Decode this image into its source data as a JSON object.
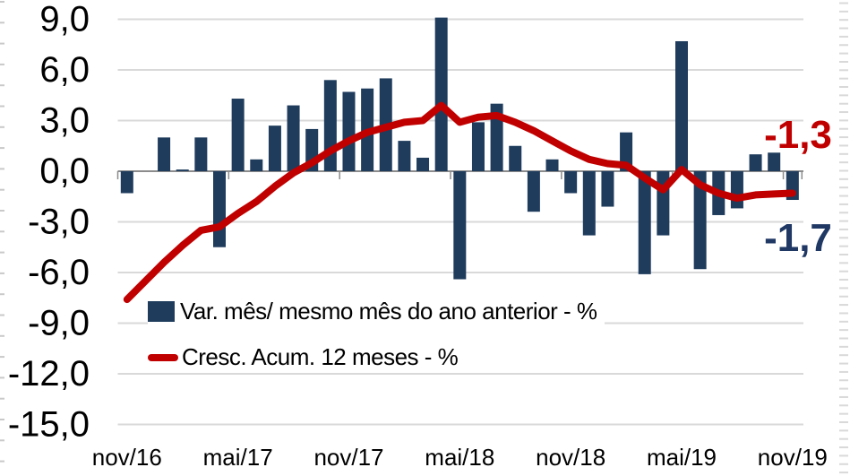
{
  "chart_data": {
    "type": "combo",
    "title": "",
    "categories": [
      "nov/16",
      "dez/16",
      "jan/17",
      "fev/17",
      "mar/17",
      "abr/17",
      "mai/17",
      "jun/17",
      "jul/17",
      "ago/17",
      "set/17",
      "out/17",
      "nov/17",
      "dez/17",
      "jan/18",
      "fev/18",
      "mar/18",
      "abr/18",
      "mai/18",
      "jun/18",
      "jul/18",
      "ago/18",
      "set/18",
      "out/18",
      "nov/18",
      "dez/18",
      "jan/19",
      "fev/19",
      "mar/19",
      "abr/19",
      "mai/19",
      "jun/19",
      "jul/19",
      "ago/19",
      "set/19",
      "out/19",
      "nov/19"
    ],
    "series": [
      {
        "name": "Var. mês/ mesmo mês do ano anterior - %",
        "type": "bar",
        "values": [
          -1.3,
          0,
          2.0,
          0.1,
          2.0,
          -4.5,
          4.3,
          0.7,
          2.7,
          3.9,
          2.5,
          5.4,
          4.7,
          4.9,
          5.5,
          1.8,
          0.8,
          9.1,
          -6.4,
          2.9,
          4.0,
          1.5,
          -2.4,
          0.7,
          -1.3,
          -3.8,
          -2.1,
          2.3,
          -6.1,
          -3.8,
          7.7,
          -5.8,
          -2.6,
          -2.2,
          1.0,
          1.1,
          -1.7
        ]
      },
      {
        "name": "Cresc. Acum. 12 meses - %",
        "type": "line",
        "values": [
          -7.6,
          -6.5,
          -5.4,
          -4.4,
          -3.5,
          -3.3,
          -2.5,
          -1.8,
          -0.9,
          -0.1,
          0.5,
          1.2,
          1.8,
          2.3,
          2.6,
          2.9,
          3.0,
          3.9,
          2.9,
          3.2,
          3.3,
          2.9,
          2.4,
          1.8,
          1.2,
          0.7,
          0.45,
          0.35,
          -0.4,
          -1.1,
          0.1,
          -0.8,
          -1.3,
          -1.6,
          -1.4,
          -1.35,
          -1.3
        ]
      }
    ],
    "y_ticks": [
      {
        "label": "9,0",
        "value": 9
      },
      {
        "label": "6,0",
        "value": 6
      },
      {
        "label": "3,0",
        "value": 3
      },
      {
        "label": "0,0",
        "value": 0
      },
      {
        "label": "-3,0",
        "value": -3
      },
      {
        "label": "-6,0",
        "value": -6
      },
      {
        "label": "-9,0",
        "value": -9
      },
      {
        "label": "-12,0",
        "value": -12
      },
      {
        "label": "-15,0",
        "value": -15
      }
    ],
    "x_tick_every": 6,
    "ylim": [
      -15,
      9
    ],
    "grid": "horizontal",
    "legend_position": "inside-bottom-left",
    "number_format": "decimal-comma",
    "colors": {
      "bar": "#1F3C5D",
      "line": "#C00000",
      "grid": "#D9D9D9",
      "axis": "#8C8C8C",
      "edge_tick": "#C9C9C9",
      "bar_label": "#1F3864",
      "line_label": "#C00000",
      "background": "#FFFFFF"
    }
  },
  "legend": {
    "bar_label": "Var. mês/ mesmo mês do ano anterior - %",
    "line_label": "Cresc. Acum. 12 meses - %"
  },
  "annotations": {
    "line_end": "-1,3",
    "bar_end": "-1,7"
  }
}
